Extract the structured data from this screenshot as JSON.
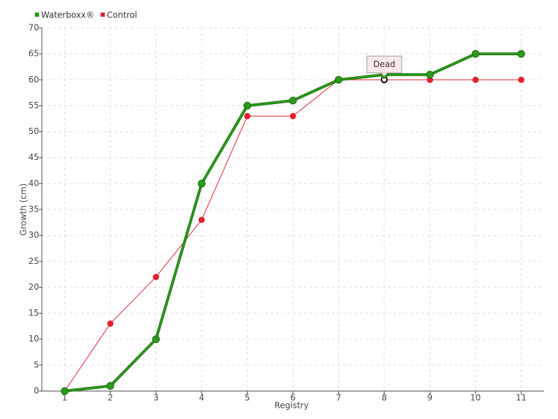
{
  "chart_data": {
    "type": "line",
    "xlabel": "Registry",
    "ylabel": "Growth (cm)",
    "categories": [
      "1",
      "2",
      "3",
      "4",
      "5",
      "6",
      "7",
      "8",
      "9",
      "10",
      "11"
    ],
    "series": [
      {
        "name": "Waterboxx®",
        "color": "#2a9a1a",
        "values": [
          0,
          1,
          10,
          40,
          55,
          56,
          60,
          61,
          61,
          65,
          65
        ]
      },
      {
        "name": "Control",
        "color": "#e0202e",
        "values": [
          0,
          13,
          22,
          33,
          53,
          53,
          60,
          60,
          60,
          60,
          60
        ]
      }
    ],
    "annotations": [
      {
        "text": "Dead",
        "series": "Control",
        "category": "8"
      }
    ],
    "ylim": [
      0,
      70
    ],
    "yticks": [
      0,
      5,
      10,
      15,
      20,
      25,
      30,
      35,
      40,
      45,
      50,
      55,
      60,
      65,
      70
    ],
    "grid": true,
    "legend": "top-left"
  }
}
